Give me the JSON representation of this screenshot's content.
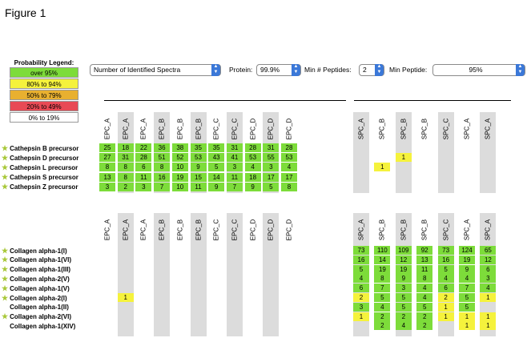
{
  "figure_title": "Figure 1",
  "legend": {
    "title": "Probability Legend:",
    "items": [
      {
        "label": "over 95%",
        "color": "#7ddc3a"
      },
      {
        "label": "80% to 94%",
        "color": "#f5f23c"
      },
      {
        "label": "50% to 79%",
        "color": "#e8b030"
      },
      {
        "label": "20% to 49%",
        "color": "#e84a55"
      },
      {
        "label": "0% to 19%",
        "color": "#ffffff"
      }
    ]
  },
  "toolbar": {
    "display_select": "Number of Identified Spectra",
    "protein_label": "Protein:",
    "protein_value": "99.9%",
    "min_peptides_label": "Min # Peptides:",
    "min_peptides_value": "2",
    "min_peptide_label": "Min Peptide:",
    "min_peptide_value": "95%"
  },
  "columns": [
    "EPC_A",
    "EPC_A",
    "EPC_A",
    "EPC_B",
    "EPC_B",
    "EPC_B",
    "EPC_C",
    "EPC_C",
    "EPC_D",
    "EPC_D",
    "EPC_D",
    "SPC_A",
    "SPC_B",
    "SPC_B",
    "SPC_B",
    "SPC_C",
    "SPC_A",
    "SPC_A"
  ],
  "shaded_columns": [
    1,
    3,
    5,
    7,
    9,
    11,
    13,
    15,
    17
  ],
  "colors": {
    "green": "#7ddc3a",
    "yellow": "#f5f23c",
    "shade": "#dcdcdc"
  },
  "table1": {
    "rows": [
      {
        "name": "Cathepsin B precursor",
        "star": true,
        "cells": [
          [
            "25",
            "g"
          ],
          [
            "18",
            "g"
          ],
          [
            "22",
            "g"
          ],
          [
            "36",
            "g"
          ],
          [
            "38",
            "g"
          ],
          [
            "35",
            "g"
          ],
          [
            "35",
            "g"
          ],
          [
            "31",
            "g"
          ],
          [
            "28",
            "g"
          ],
          [
            "31",
            "g"
          ],
          [
            "28",
            "g"
          ],
          null,
          null,
          null,
          null,
          null,
          null,
          null
        ]
      },
      {
        "name": "Cathepsin D precursor",
        "star": true,
        "cells": [
          [
            "27",
            "g"
          ],
          [
            "31",
            "g"
          ],
          [
            "28",
            "g"
          ],
          [
            "51",
            "g"
          ],
          [
            "52",
            "g"
          ],
          [
            "53",
            "g"
          ],
          [
            "43",
            "g"
          ],
          [
            "41",
            "g"
          ],
          [
            "53",
            "g"
          ],
          [
            "55",
            "g"
          ],
          [
            "53",
            "g"
          ],
          null,
          null,
          [
            "1",
            "y"
          ],
          null,
          null,
          null,
          null
        ]
      },
      {
        "name": "Cathepsin L precursor",
        "star": true,
        "cells": [
          [
            "8",
            "g"
          ],
          [
            "8",
            "g"
          ],
          [
            "6",
            "g"
          ],
          [
            "8",
            "g"
          ],
          [
            "10",
            "g"
          ],
          [
            "9",
            "g"
          ],
          [
            "5",
            "g"
          ],
          [
            "3",
            "g"
          ],
          [
            "4",
            "g"
          ],
          [
            "3",
            "g"
          ],
          [
            "4",
            "g"
          ],
          null,
          [
            "1",
            "y"
          ],
          null,
          null,
          null,
          null,
          null
        ]
      },
      {
        "name": "Cathepsin S precursor",
        "star": true,
        "cells": [
          [
            "13",
            "g"
          ],
          [
            "8",
            "g"
          ],
          [
            "11",
            "g"
          ],
          [
            "16",
            "g"
          ],
          [
            "19",
            "g"
          ],
          [
            "15",
            "g"
          ],
          [
            "14",
            "g"
          ],
          [
            "11",
            "g"
          ],
          [
            "18",
            "g"
          ],
          [
            "17",
            "g"
          ],
          [
            "17",
            "g"
          ],
          null,
          null,
          null,
          null,
          null,
          null,
          null
        ]
      },
      {
        "name": "Cathepsin Z precursor",
        "star": true,
        "cells": [
          [
            "3",
            "g"
          ],
          [
            "2",
            "g"
          ],
          [
            "3",
            "g"
          ],
          [
            "7",
            "g"
          ],
          [
            "10",
            "g"
          ],
          [
            "11",
            "g"
          ],
          [
            "9",
            "g"
          ],
          [
            "7",
            "g"
          ],
          [
            "9",
            "g"
          ],
          [
            "5",
            "g"
          ],
          [
            "8",
            "g"
          ],
          null,
          null,
          null,
          null,
          null,
          null,
          null
        ]
      }
    ]
  },
  "table2": {
    "rows": [
      {
        "name": "Collagen alpha-1(I)",
        "star": true,
        "cells": [
          null,
          null,
          null,
          null,
          null,
          null,
          null,
          null,
          null,
          null,
          null,
          [
            "73",
            "g"
          ],
          [
            "110",
            "g"
          ],
          [
            "109",
            "g"
          ],
          [
            "92",
            "g"
          ],
          [
            "73",
            "g"
          ],
          [
            "124",
            "g"
          ],
          [
            "65",
            "g"
          ]
        ]
      },
      {
        "name": "Collagen alpha-1(VI)",
        "star": true,
        "cells": [
          null,
          null,
          null,
          null,
          null,
          null,
          null,
          null,
          null,
          null,
          null,
          [
            "16",
            "g"
          ],
          [
            "14",
            "g"
          ],
          [
            "12",
            "g"
          ],
          [
            "13",
            "g"
          ],
          [
            "16",
            "g"
          ],
          [
            "19",
            "g"
          ],
          [
            "12",
            "g"
          ]
        ]
      },
      {
        "name": "Collagen alpha-1(III)",
        "star": true,
        "cells": [
          null,
          null,
          null,
          null,
          null,
          null,
          null,
          null,
          null,
          null,
          null,
          [
            "5",
            "g"
          ],
          [
            "19",
            "g"
          ],
          [
            "19",
            "g"
          ],
          [
            "11",
            "g"
          ],
          [
            "5",
            "g"
          ],
          [
            "9",
            "g"
          ],
          [
            "6",
            "g"
          ]
        ]
      },
      {
        "name": "Collagen alpha-2(V)",
        "star": true,
        "cells": [
          null,
          null,
          null,
          null,
          null,
          null,
          null,
          null,
          null,
          null,
          null,
          [
            "4",
            "g"
          ],
          [
            "8",
            "g"
          ],
          [
            "9",
            "g"
          ],
          [
            "8",
            "g"
          ],
          [
            "4",
            "g"
          ],
          [
            "4",
            "g"
          ],
          [
            "3",
            "g"
          ]
        ]
      },
      {
        "name": "Collagen alpha-1(V)",
        "star": true,
        "cells": [
          null,
          null,
          null,
          null,
          null,
          null,
          null,
          null,
          null,
          null,
          null,
          [
            "6",
            "g"
          ],
          [
            "7",
            "g"
          ],
          [
            "3",
            "g"
          ],
          [
            "4",
            "g"
          ],
          [
            "6",
            "g"
          ],
          [
            "7",
            "g"
          ],
          [
            "4",
            "g"
          ]
        ]
      },
      {
        "name": "Collagen alpha-2(I)",
        "star": true,
        "cells": [
          null,
          [
            "1",
            "y"
          ],
          null,
          null,
          null,
          null,
          null,
          null,
          null,
          null,
          null,
          [
            "2",
            "y"
          ],
          [
            "5",
            "g"
          ],
          [
            "5",
            "g"
          ],
          [
            "4",
            "g"
          ],
          [
            "2",
            "y"
          ],
          [
            "5",
            "g"
          ],
          [
            "1",
            "y"
          ]
        ]
      },
      {
        "name": "Collagen alpha-1(II)",
        "star": false,
        "cells": [
          null,
          null,
          null,
          null,
          null,
          null,
          null,
          null,
          null,
          null,
          null,
          [
            "3",
            "g"
          ],
          [
            "4",
            "g"
          ],
          [
            "5",
            "g"
          ],
          [
            "5",
            "g"
          ],
          [
            "1",
            "y"
          ],
          [
            "5",
            "g"
          ],
          null
        ]
      },
      {
        "name": "Collagen alpha-2(VI)",
        "star": true,
        "cells": [
          null,
          null,
          null,
          null,
          null,
          null,
          null,
          null,
          null,
          null,
          null,
          [
            "1",
            "y"
          ],
          [
            "2",
            "g"
          ],
          [
            "2",
            "g"
          ],
          [
            "2",
            "g"
          ],
          [
            "1",
            "y"
          ],
          [
            "1",
            "y"
          ],
          [
            "1",
            "y"
          ]
        ]
      },
      {
        "name": "Collagen alpha-1(XIV)",
        "star": false,
        "cells": [
          null,
          null,
          null,
          null,
          null,
          null,
          null,
          null,
          null,
          null,
          null,
          null,
          [
            "2",
            "g"
          ],
          [
            "4",
            "g"
          ],
          [
            "2",
            "g"
          ],
          null,
          [
            "1",
            "y"
          ],
          [
            "1",
            "y"
          ]
        ]
      }
    ]
  }
}
